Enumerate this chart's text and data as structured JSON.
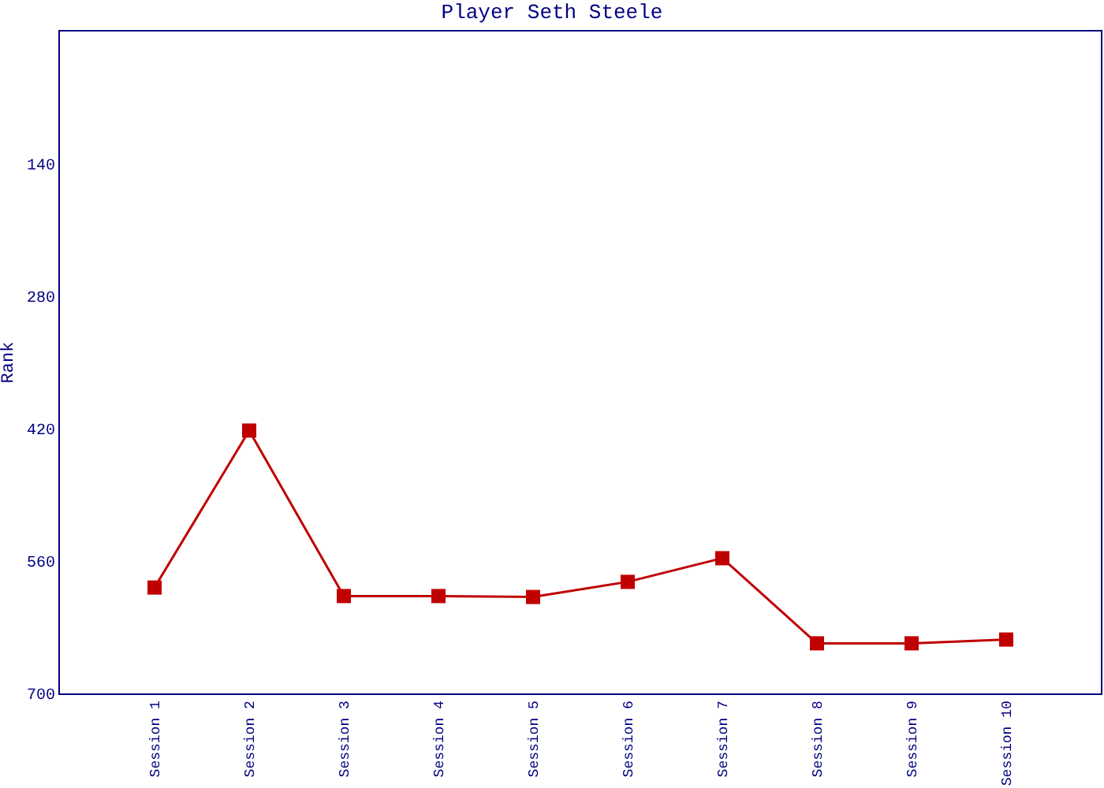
{
  "chart_data": {
    "type": "line",
    "title": "Player Seth Steele",
    "ylabel": "Rank",
    "categories": [
      "Session 1",
      "Session 2",
      "Session 3",
      "Session 4",
      "Session 5",
      "Session 6",
      "Session 7",
      "Session 8",
      "Session 9",
      "Session 10"
    ],
    "series": [
      {
        "color": "#c00000",
        "values": [
          588,
          422,
          597,
          597,
          598,
          582,
          557,
          647,
          647,
          643
        ]
      }
    ],
    "ylim": [
      700,
      0
    ],
    "yticks": [
      140,
      280,
      420,
      560,
      700
    ],
    "marker": "square",
    "line_style": "solid"
  }
}
